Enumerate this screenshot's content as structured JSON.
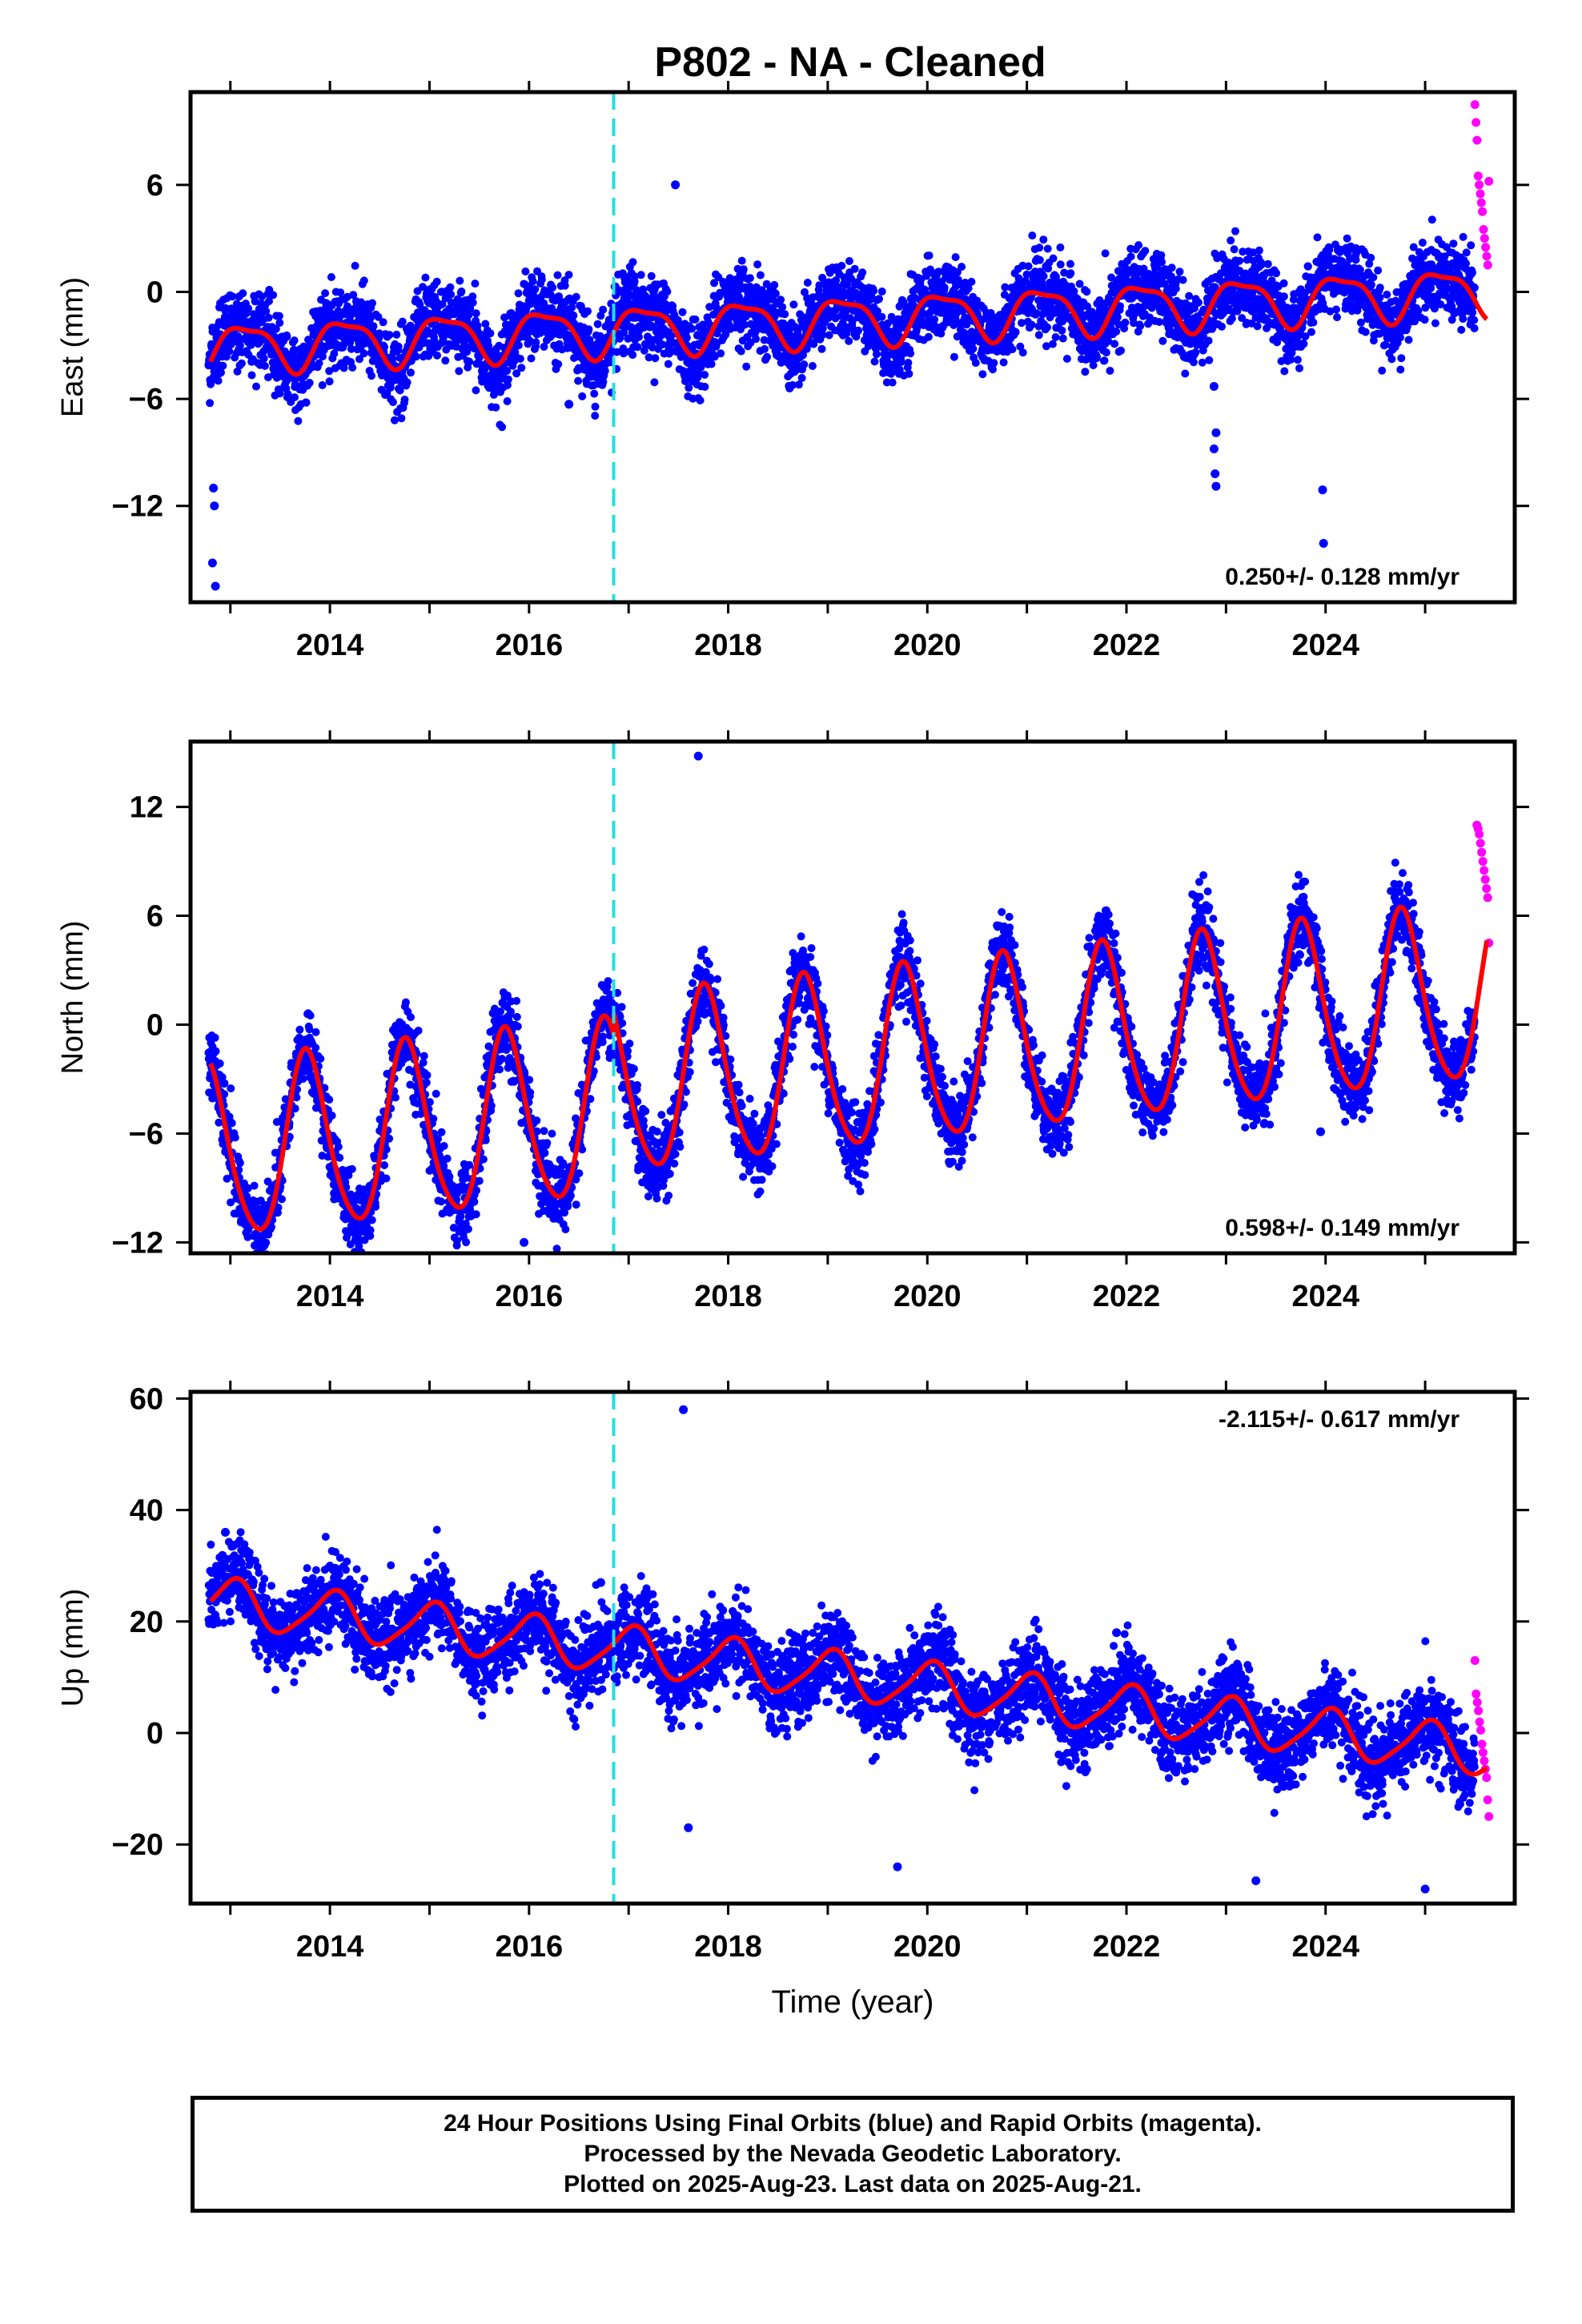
{
  "title": "P802  - NA - Cleaned",
  "colors": {
    "final_points": "#0000ff",
    "rapid_points": "#ff00ff",
    "model_curve": "#ff0000",
    "event_line": "#22e0e0",
    "frame": "#000000"
  },
  "x_tick_labels": [
    "2014",
    "2016",
    "2018",
    "2020",
    "2022",
    "2024"
  ],
  "footer": {
    "line1": "24 Hour Positions Using Final Orbits (blue) and Rapid Orbits (magenta).",
    "line2": "Processed by the Nevada Geodetic Laboratory.",
    "line3": "Plotted on 2025-Aug-23. Last data on 2025-Aug-21."
  },
  "chart_data": [
    {
      "type": "scatter",
      "component": "east",
      "ylabel": "East (mm)",
      "xlabel": "",
      "xlim": [
        2012.6,
        2025.9
      ],
      "ylim": [
        -17.4,
        11.2
      ],
      "yticks": [
        6,
        0,
        -6,
        -12
      ],
      "ytick_labels": [
        "6",
        "0",
        "−6",
        "−12"
      ],
      "rate_label": "0.250+/- 0.128 mm/yr",
      "event_line_x": 2016.85,
      "model": {
        "offset": -1.6,
        "rate": 0.25,
        "amp1": 1.3,
        "phase1": 0.9,
        "amp2": 0.4,
        "phase2": 0.3,
        "step_at": 2016.85,
        "step": 0.0,
        "scatter": 1.0,
        "dense_ripple": 0.35
      },
      "rapid_points": {
        "x_start": 2025.5,
        "x_end": 2025.64,
        "values": [
          10.5,
          9.5,
          8.5,
          6.5,
          6.0,
          5.5,
          5.0,
          4.5,
          3.5,
          3.0,
          2.5,
          2.0,
          1.5,
          6.2
        ]
      },
      "outliers": [
        [
          2012.83,
          -11.0
        ],
        [
          2012.84,
          -12.0
        ],
        [
          2012.82,
          -15.2
        ],
        [
          2012.85,
          -16.5
        ],
        [
          2022.88,
          -5.3
        ],
        [
          2022.9,
          -7.9
        ],
        [
          2022.88,
          -8.8
        ],
        [
          2022.89,
          -10.2
        ],
        [
          2022.9,
          -10.9
        ],
        [
          2023.97,
          -11.1
        ],
        [
          2023.98,
          -14.1
        ],
        [
          2017.47,
          6.0
        ],
        [
          2016.4,
          -6.3
        ]
      ]
    },
    {
      "type": "scatter",
      "component": "north",
      "ylabel": "North (mm)",
      "xlabel": "",
      "xlim": [
        2012.6,
        2025.9
      ],
      "ylim": [
        -12.6,
        15.6
      ],
      "yticks": [
        12,
        6,
        0,
        -6,
        -12
      ],
      "ytick_labels": [
        "12",
        "6",
        "0",
        "−6",
        "−12"
      ],
      "rate_label": "0.598+/- 0.149 mm/yr",
      "event_line_x": 2016.85,
      "model": {
        "offset": -3.5,
        "rate": 0.598,
        "amp1": 4.8,
        "phase1": 0.52,
        "amp2": 0.6,
        "phase2": 0.1,
        "step_at": 2016.85,
        "step": 1.2,
        "scatter": 1.0,
        "dense_ripple": 0.3
      },
      "rapid_points": {
        "x_start": 2025.52,
        "x_end": 2025.64,
        "values": [
          11.0,
          10.8,
          10.5,
          10.0,
          9.5,
          9.0,
          8.5,
          8.0,
          7.5,
          7.0,
          4.5
        ]
      },
      "outliers": [
        [
          2017.7,
          14.8
        ],
        [
          2023.95,
          -5.9
        ],
        [
          2017.5,
          -6.5
        ],
        [
          2015.95,
          -12.0
        ]
      ]
    },
    {
      "type": "scatter",
      "component": "up",
      "ylabel": "Up (mm)",
      "xlabel": "Time (year)",
      "xlim": [
        2012.6,
        2025.9
      ],
      "ylim": [
        -30.6,
        61.2
      ],
      "yticks": [
        60,
        40,
        20,
        0,
        -20
      ],
      "ytick_labels": [
        "60",
        "40",
        "20",
        "0",
        "−20"
      ],
      "rate_label": "-2.115+/- 0.617 mm/yr",
      "event_line_x": 2016.85,
      "model": {
        "offset": 10.5,
        "rate": -2.115,
        "amp1": 4.2,
        "phase1": 0.78,
        "amp2": 0.8,
        "phase2": 0.5,
        "step_at": 2016.85,
        "step": 0.0,
        "scatter": 3.6,
        "dense_ripple": 1.0
      },
      "rapid_points": {
        "x_start": 2025.5,
        "x_end": 2025.64,
        "values": [
          13.0,
          7.0,
          5.5,
          4.0,
          2.0,
          0.5,
          -2.0,
          -3.5,
          -5.0,
          -6.5,
          -8.0,
          -12.0,
          -15.0
        ]
      },
      "outliers": [
        [
          2017.55,
          58.0
        ],
        [
          2012.95,
          36.0
        ],
        [
          2016.72,
          27.0
        ],
        [
          2025.0,
          -28.0
        ],
        [
          2023.3,
          -26.5
        ],
        [
          2019.7,
          -24.0
        ],
        [
          2017.6,
          -17.0
        ],
        [
          2021.9,
          18.0
        ]
      ]
    }
  ]
}
